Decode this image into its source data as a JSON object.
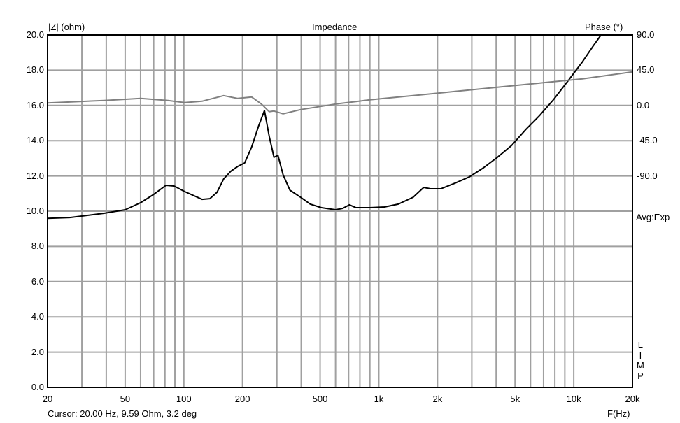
{
  "chart_data": {
    "type": "line",
    "title": "Impedance",
    "ylabel": "|Z| (ohm)",
    "y2label": "Phase (°)",
    "xlabel": "F(Hz)",
    "xscale": "log",
    "xlim": [
      20,
      20000
    ],
    "ylim": [
      0,
      20
    ],
    "y2lim": [
      -360,
      90
    ],
    "grid": true,
    "xticks": [
      {
        "v": 20,
        "l": "20"
      },
      {
        "v": 50,
        "l": "50"
      },
      {
        "v": 100,
        "l": "100"
      },
      {
        "v": 200,
        "l": "200"
      },
      {
        "v": 500,
        "l": "500"
      },
      {
        "v": 1000,
        "l": "1k"
      },
      {
        "v": 2000,
        "l": "2k"
      },
      {
        "v": 5000,
        "l": "5k"
      },
      {
        "v": 10000,
        "l": "10k"
      },
      {
        "v": 20000,
        "l": "20k"
      }
    ],
    "yticks": [
      "0.0",
      "2.0",
      "4.0",
      "6.0",
      "8.0",
      "10.0",
      "12.0",
      "14.0",
      "16.0",
      "18.0",
      "20.0"
    ],
    "y2ticks": [
      "90.0",
      "45.0",
      "0.0",
      "-45.0",
      "-90.0"
    ],
    "series": [
      {
        "color": "#000000",
        "axis": "left",
        "x": [
          20,
          26,
          39,
          50,
          60,
          70,
          81,
          89,
          101,
          124,
          136,
          148,
          160,
          174,
          189,
          205,
          223,
          242,
          259,
          274,
          290,
          304,
          323,
          350,
          397,
          445,
          508,
          600,
          653,
          707,
          763,
          900,
          1070,
          1260,
          1500,
          1700,
          1840,
          2080,
          2460,
          2910,
          3440,
          4060,
          4800,
          5680,
          6700,
          7900,
          9380,
          11100,
          12500,
          13800
        ],
        "y": [
          9.59,
          9.64,
          9.88,
          10.08,
          10.48,
          10.95,
          11.47,
          11.43,
          11.11,
          10.67,
          10.71,
          11.07,
          11.83,
          12.26,
          12.54,
          12.74,
          13.65,
          14.84,
          15.71,
          14.25,
          13.06,
          13.17,
          12.06,
          11.19,
          10.79,
          10.4,
          10.2,
          10.08,
          10.16,
          10.36,
          10.2,
          10.2,
          10.24,
          10.4,
          10.79,
          11.35,
          11.27,
          11.27,
          11.59,
          11.94,
          12.46,
          13.06,
          13.73,
          14.64,
          15.44,
          16.35,
          17.42,
          18.49,
          19.33,
          20.0
        ]
      },
      {
        "color": "#808080",
        "axis": "right",
        "x": [
          20,
          39,
          60,
          83,
          101,
          124,
          160,
          189,
          223,
          250,
          274,
          290,
          323,
          397,
          600,
          900,
          1500,
          2460,
          4060,
          6700,
          11100,
          20000
        ],
        "y": [
          3.2,
          6.3,
          8.9,
          6.3,
          3.6,
          5.4,
          12.5,
          8.9,
          10.7,
          1.8,
          -8.0,
          -7.1,
          -10.7,
          -5.4,
          1.8,
          7.1,
          12.5,
          17.9,
          23.2,
          28.6,
          33.9,
          42.9
        ]
      }
    ]
  },
  "cursor": "Cursor: 20.00 Hz, 9.59 Ohm, 3.2 deg",
  "avg": "Avg:Exp",
  "limp": [
    "L",
    "I",
    "M",
    "P"
  ],
  "colors": {
    "grid": "#a0a0a0"
  }
}
